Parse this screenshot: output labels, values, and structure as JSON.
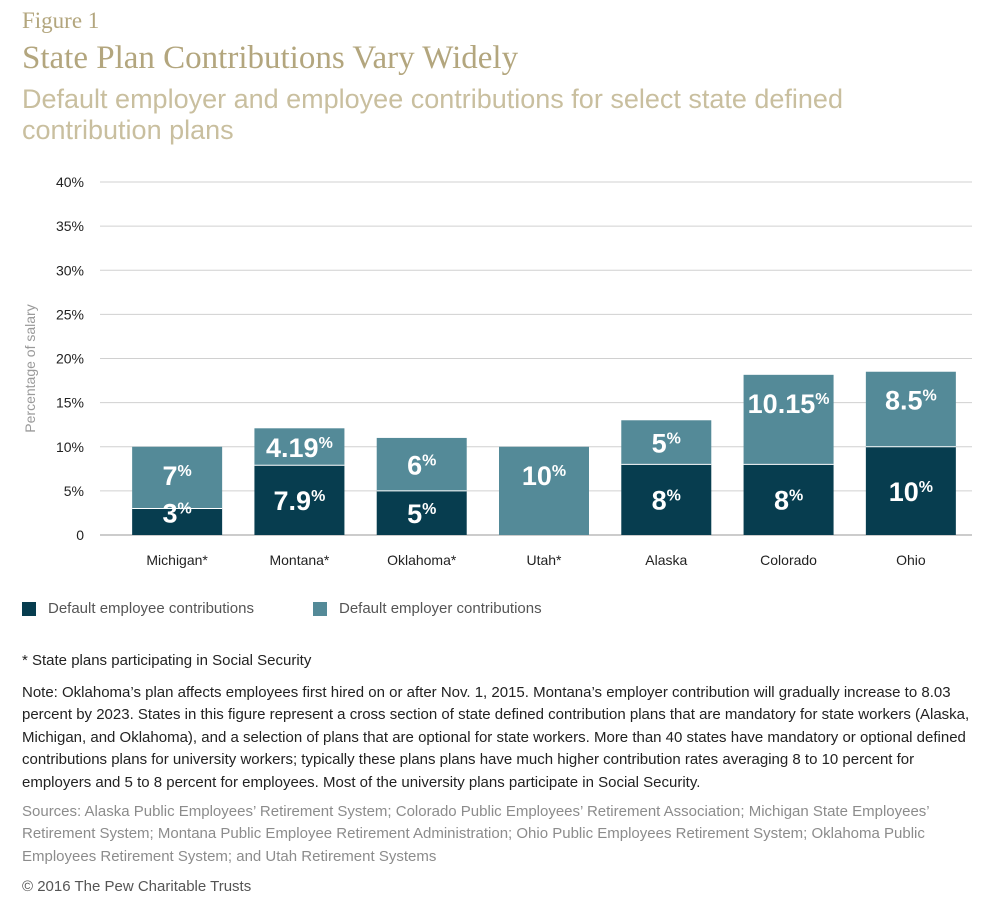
{
  "figure_label": "Figure 1",
  "title": "State Plan Contributions Vary Widely",
  "subtitle": "Default employer and employee contributions for select state defined contribution plans",
  "colors": {
    "employee": "#073d4f",
    "employer": "#548a98",
    "grid": "#d0d0d0",
    "title": "#b3a67e"
  },
  "chart_data": {
    "type": "bar",
    "stacked": true,
    "ylabel": "Percentage of salary",
    "ylim": [
      0,
      40
    ],
    "yticks": [
      "0",
      "5%",
      "10%",
      "15%",
      "20%",
      "25%",
      "30%",
      "35%",
      "40%"
    ],
    "grid": true,
    "categories": [
      "Michigan*",
      "Montana*",
      "Oklahoma*",
      "Utah*",
      "Alaska",
      "Colorado",
      "Ohio"
    ],
    "series": [
      {
        "name": "Default employee contributions",
        "values": [
          3,
          7.9,
          5,
          0,
          8,
          8,
          10
        ],
        "labels": [
          "3",
          "7.9",
          "5",
          "",
          "8",
          "8",
          "10"
        ]
      },
      {
        "name": "Default employer contributions",
        "values": [
          7,
          4.19,
          6,
          10,
          5,
          10.15,
          8.5
        ],
        "labels": [
          "7",
          "4.19",
          "6",
          "10",
          "5",
          "10.15",
          "8.5"
        ]
      }
    ],
    "legend_position": "bottom-left"
  },
  "footnote": "* State plans participating in Social Security",
  "note": "Note: Oklahoma’s plan affects employees first hired on or after Nov. 1, 2015. Montana’s employer contribution will gradually increase to 8.03 percent by 2023. States in this figure represent a cross section of state defined contribution plans that are mandatory for state workers (Alaska, Michigan, and Oklahoma), and a selection of plans that are optional for state workers. More than 40 states have mandatory or optional defined contributions plans for university workers; typically these plans plans have much higher contribution rates averaging 8 to 10 percent for employers and 5 to 8 percent for employees. Most of the university plans participate in Social Security.",
  "sources": "Sources: Alaska Public Employees’ Retirement System; Colorado Public Employees’ Retirement Association; Michigan State Employees’ Retirement System; Montana Public Employee Retirement Administration; Ohio Public Employees Retirement System; Oklahoma Public Employees Retirement System; and Utah Retirement Systems",
  "copyright": "© 2016 The Pew Charitable Trusts"
}
